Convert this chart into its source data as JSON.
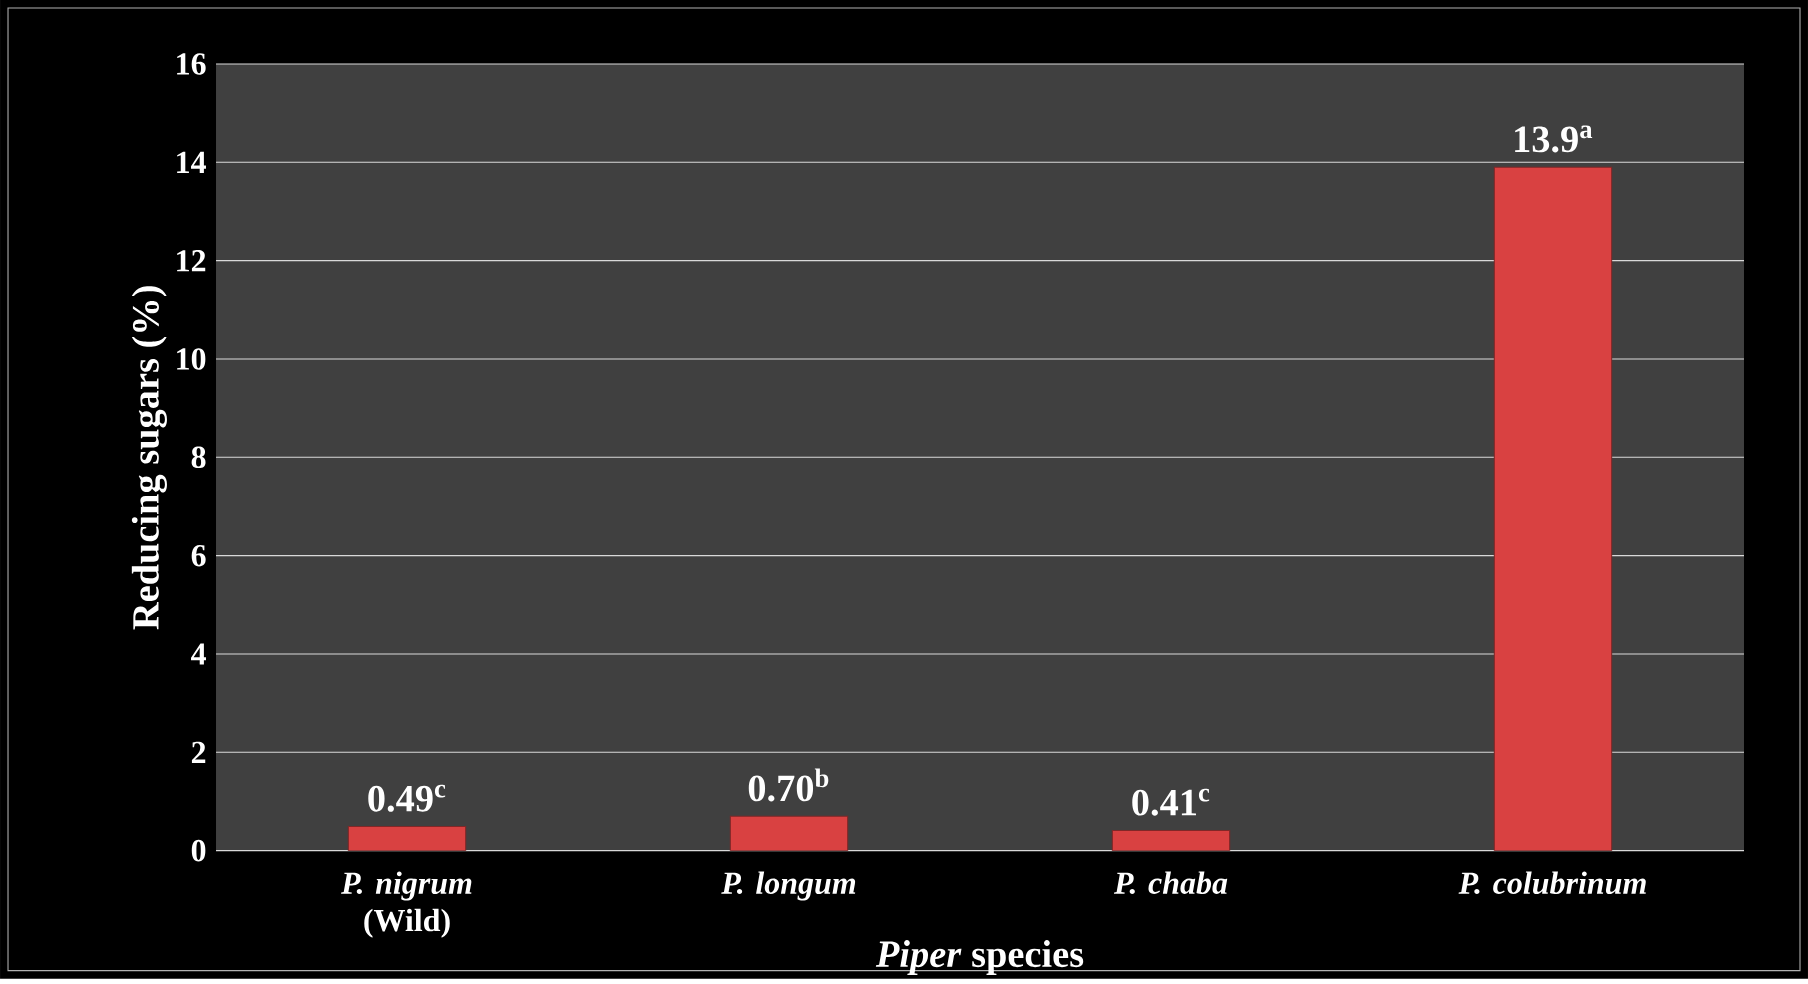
{
  "chart_data": {
    "type": "bar",
    "xlabel": "*Piper* species",
    "ylabel": "Reducing sugars (%)",
    "categories": [
      "*P. nigrum* (Wild)",
      "*P. longum*",
      "*P. chaba*",
      "*P. colubrinum*"
    ],
    "values": [
      0.49,
      0.7,
      0.41,
      13.9
    ],
    "value_labels": [
      "0.49$^{c}$",
      "0.70$^{b}$",
      "0.41$^{c}$",
      "13.9$^{a}$"
    ],
    "color": "#d94141",
    "ylim": [
      0,
      16
    ],
    "yticks": [
      0,
      2,
      4,
      6,
      8,
      10,
      12,
      14,
      16
    ],
    "grid": "y"
  }
}
